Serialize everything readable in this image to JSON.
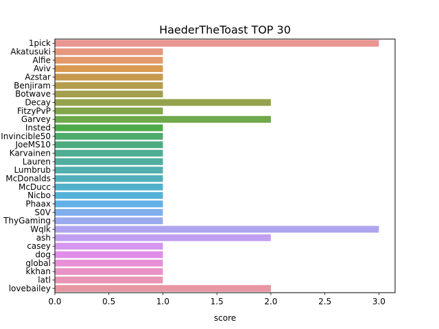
{
  "chart_data": {
    "type": "bar",
    "orientation": "horizontal",
    "title": "HaederTheToast TOP 30",
    "xlabel": "score",
    "ylabel": "",
    "xlim": [
      0,
      3.15
    ],
    "xticks": [
      0.0,
      0.5,
      1.0,
      1.5,
      2.0,
      2.5,
      3.0
    ],
    "xtick_labels": [
      "0.0",
      "0.5",
      "1.0",
      "1.5",
      "2.0",
      "2.5",
      "3.0"
    ],
    "grid": false,
    "categories": [
      "1pick",
      "Akatusuki",
      "Alfie",
      "Aviv",
      "Azstar",
      "Benjiram",
      "Botwave",
      "Decay",
      "FitzyPvP",
      "Garvey",
      "Insted",
      "Invincible50",
      "JoeMS10",
      "Karvainen",
      "Lauren",
      "Lumbrub",
      "McDonalds",
      "McDucc",
      "Nicbo",
      "Phaax",
      "S0V",
      "ThyGaming",
      "Wqlk",
      "ash",
      "casey",
      "dog",
      "global",
      "kkhan",
      "latl",
      "lovebailey"
    ],
    "values": [
      3,
      1,
      1,
      1,
      1,
      1,
      1,
      2,
      1,
      2,
      1,
      1,
      1,
      1,
      1,
      1,
      1,
      1,
      1,
      1,
      1,
      1,
      3,
      2,
      1,
      1,
      1,
      1,
      1,
      2
    ],
    "colors": [
      "#e99591",
      "#e6977e",
      "#e39a6a",
      "#d9994f",
      "#c59a4e",
      "#b49d4d",
      "#a39f4c",
      "#94a34b",
      "#82a64b",
      "#6fa94a",
      "#4fab4a",
      "#4dab6c",
      "#4eab80",
      "#4fad91",
      "#50ae9f",
      "#51afad",
      "#51afbb",
      "#52b1ca",
      "#54b1d8",
      "#62b0e8",
      "#7faeea",
      "#9aaaec",
      "#ada5ee",
      "#c19ff0",
      "#d497ef",
      "#e08ce9",
      "#e98fd8",
      "#e892c7",
      "#e894b5",
      "#e996a3"
    ]
  }
}
